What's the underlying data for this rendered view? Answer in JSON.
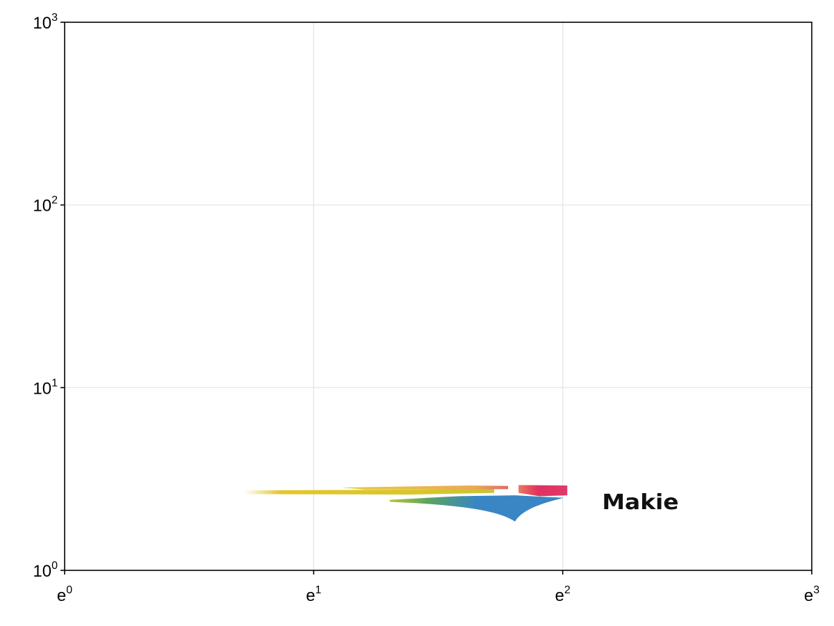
{
  "chart_data": {
    "type": "image",
    "title": "",
    "xlabel": "",
    "ylabel": "",
    "xscale": "log (natural)",
    "yscale": "log10",
    "xlim": [
      1,
      20.0855
    ],
    "ylim": [
      1,
      1000
    ],
    "x_ticks": [
      {
        "base": "e",
        "exp": "0",
        "value": 1
      },
      {
        "base": "e",
        "exp": "1",
        "value": 2.71828
      },
      {
        "base": "e",
        "exp": "2",
        "value": 7.38906
      },
      {
        "base": "e",
        "exp": "3",
        "value": 20.0855
      }
    ],
    "y_ticks": [
      {
        "base": "10",
        "exp": "0",
        "value": 1
      },
      {
        "base": "10",
        "exp": "1",
        "value": 10
      },
      {
        "base": "10",
        "exp": "2",
        "value": 100
      },
      {
        "base": "10",
        "exp": "3",
        "value": 1000
      }
    ],
    "grid": true,
    "legend": "none",
    "image": {
      "content": "Makie logo",
      "logo_text": "Makie",
      "x_extent": [
        2.05,
        8.3
      ],
      "y_extent": [
        1.85,
        3.1
      ],
      "colors": {
        "yellow": "#e3c72a",
        "red": "#e0315f",
        "blue": "#3a86c4",
        "green": "#5aa55c",
        "text": "#111111"
      }
    }
  }
}
